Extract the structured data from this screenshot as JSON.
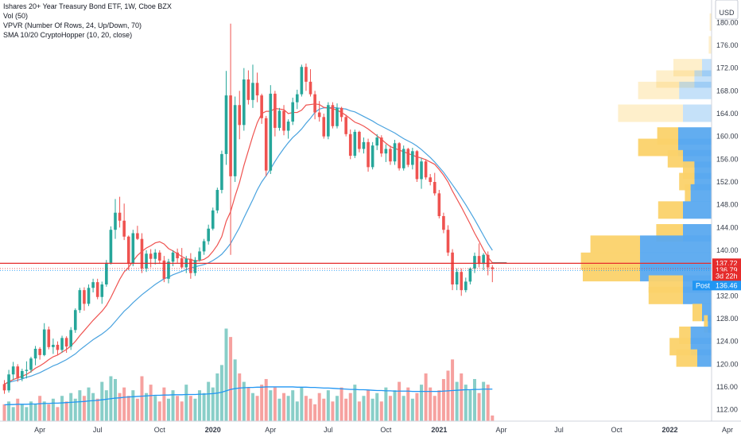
{
  "legend": {
    "title": "Ishares 20+ Year Treasury Bond ETF, 1W, Cboe BZX",
    "vol": "Vol (50)",
    "vpvr": "VPVR (Number Of Rows, 24, Up/Down, 70)",
    "sma": "SMA 10/20 CryptoHopper (10, 20, close)"
  },
  "currency_label": "USD",
  "colors": {
    "up": "#26a69a",
    "down": "#ef5350",
    "sma10": "#ef5350",
    "sma20": "#4aa3df",
    "volma": "#2196f3",
    "vpvr_up": "#5aa9ef",
    "vpvr_down": "#fbd26a",
    "price_line": "#e52b2b",
    "post": "#2196f3"
  },
  "chart_data": {
    "type": "candlestick",
    "ylim": [
      110,
      182
    ],
    "y_ticks": [
      112,
      116,
      120,
      124,
      128,
      132,
      136,
      140,
      144,
      148,
      152,
      156,
      160,
      164,
      168,
      172,
      176,
      180
    ],
    "x_ticks": [
      "Apr",
      "Jul",
      "Oct",
      "2020",
      "Apr",
      "Jul",
      "Oct",
      "2021",
      "Apr",
      "Jul",
      "Oct",
      "2022",
      "Apr"
    ],
    "x_tick_bold": [
      false,
      false,
      false,
      true,
      false,
      false,
      false,
      true,
      false,
      false,
      false,
      true,
      false
    ],
    "x_tick_week": [
      8,
      21,
      35,
      47,
      60,
      73,
      86,
      98,
      112,
      125,
      138,
      150,
      163
    ],
    "candles": [
      [
        116.5,
        117.2,
        114.8,
        115.4
      ],
      [
        115.4,
        119.0,
        115.0,
        118.2
      ],
      [
        118.2,
        120.4,
        117.2,
        119.6
      ],
      [
        119.6,
        120.0,
        116.9,
        117.5
      ],
      [
        117.5,
        119.2,
        117.0,
        118.8
      ],
      [
        118.8,
        120.5,
        117.5,
        119.0
      ],
      [
        119.0,
        121.3,
        118.5,
        121.0
      ],
      [
        121.0,
        123.2,
        119.8,
        122.7
      ],
      [
        122.7,
        123.0,
        120.8,
        121.6
      ],
      [
        121.6,
        127.2,
        121.4,
        126.1
      ],
      [
        126.1,
        126.6,
        122.6,
        123.0
      ],
      [
        123.0,
        124.5,
        121.8,
        123.4
      ],
      [
        123.4,
        124.0,
        121.6,
        122.5
      ],
      [
        122.5,
        125.0,
        122.0,
        124.6
      ],
      [
        124.6,
        124.9,
        122.0,
        123.1
      ],
      [
        123.1,
        126.5,
        122.5,
        126.0
      ],
      [
        126.0,
        129.8,
        125.5,
        129.5
      ],
      [
        129.5,
        133.4,
        129.0,
        133.0
      ],
      [
        133.0,
        133.5,
        129.4,
        130.6
      ],
      [
        130.6,
        134.0,
        130.2,
        133.4
      ],
      [
        133.4,
        135.0,
        132.6,
        134.4
      ],
      [
        134.4,
        135.0,
        131.4,
        131.8
      ],
      [
        131.8,
        134.5,
        130.6,
        134.0
      ],
      [
        134.0,
        138.3,
        133.6,
        137.8
      ],
      [
        137.8,
        144.2,
        137.5,
        143.6
      ],
      [
        143.6,
        149.0,
        142.0,
        146.6
      ],
      [
        146.6,
        149.4,
        144.0,
        145.2
      ],
      [
        145.2,
        148.2,
        141.8,
        142.4
      ],
      [
        142.4,
        142.6,
        136.5,
        137.6
      ],
      [
        137.6,
        143.6,
        137.2,
        143.0
      ],
      [
        143.0,
        144.3,
        141.8,
        142.0
      ],
      [
        142.0,
        143.0,
        136.0,
        136.8
      ],
      [
        136.8,
        140.0,
        136.2,
        139.4
      ],
      [
        139.4,
        140.2,
        137.0,
        138.5
      ],
      [
        138.5,
        140.2,
        137.5,
        139.6
      ],
      [
        139.6,
        140.0,
        137.6,
        138.2
      ],
      [
        138.2,
        139.0,
        134.4,
        135.0
      ],
      [
        135.0,
        138.5,
        134.2,
        138.0
      ],
      [
        138.0,
        140.0,
        137.2,
        139.6
      ],
      [
        139.6,
        140.3,
        137.8,
        138.6
      ],
      [
        138.6,
        140.4,
        136.8,
        137.0
      ],
      [
        137.0,
        139.0,
        136.0,
        138.5
      ],
      [
        138.5,
        139.5,
        135.0,
        136.0
      ],
      [
        136.0,
        138.8,
        135.5,
        138.3
      ],
      [
        138.3,
        140.5,
        138.0,
        139.8
      ],
      [
        139.8,
        142.0,
        139.2,
        141.6
      ],
      [
        141.6,
        144.5,
        141.0,
        143.8
      ],
      [
        143.8,
        147.5,
        143.5,
        147.0
      ],
      [
        147.0,
        151.0,
        146.5,
        150.6
      ],
      [
        150.6,
        157.5,
        150.0,
        156.9
      ],
      [
        156.9,
        171.5,
        155.0,
        167.2
      ],
      [
        167.2,
        179.8,
        139.2,
        153.0
      ],
      [
        153.0,
        167.0,
        152.0,
        165.5
      ],
      [
        165.5,
        168.0,
        159.5,
        162.0
      ],
      [
        162.0,
        172.0,
        161.0,
        170.0
      ],
      [
        170.0,
        171.6,
        165.6,
        166.4
      ],
      [
        166.4,
        172.6,
        165.0,
        169.4
      ],
      [
        169.4,
        171.2,
        166.0,
        167.2
      ],
      [
        167.2,
        167.5,
        162.2,
        163.2
      ],
      [
        163.2,
        163.6,
        153.0,
        154.0
      ],
      [
        154.0,
        169.0,
        153.4,
        167.5
      ],
      [
        167.5,
        168.0,
        160.0,
        161.5
      ],
      [
        161.5,
        165.0,
        161.0,
        164.5
      ],
      [
        164.5,
        165.5,
        160.2,
        161.0
      ],
      [
        161.0,
        163.0,
        159.6,
        162.6
      ],
      [
        162.6,
        166.8,
        162.0,
        166.0
      ],
      [
        166.0,
        168.2,
        164.8,
        167.4
      ],
      [
        167.4,
        172.6,
        167.0,
        172.2
      ],
      [
        172.2,
        172.8,
        168.0,
        169.6
      ],
      [
        169.6,
        171.8,
        167.0,
        167.4
      ],
      [
        167.4,
        168.0,
        163.0,
        164.2
      ],
      [
        164.2,
        166.2,
        162.6,
        163.4
      ],
      [
        163.4,
        164.0,
        159.6,
        160.0
      ],
      [
        160.0,
        166.0,
        159.5,
        165.5
      ],
      [
        165.5,
        166.0,
        161.4,
        161.8
      ],
      [
        161.8,
        165.8,
        161.4,
        165.0
      ],
      [
        165.0,
        165.2,
        162.6,
        163.4
      ],
      [
        163.4,
        163.8,
        160.0,
        160.4
      ],
      [
        160.4,
        161.2,
        156.0,
        156.6
      ],
      [
        156.6,
        161.2,
        156.2,
        160.8
      ],
      [
        160.8,
        161.0,
        157.2,
        157.8
      ],
      [
        157.8,
        159.8,
        157.0,
        159.0
      ],
      [
        159.0,
        159.6,
        153.8,
        154.6
      ],
      [
        154.6,
        159.0,
        154.2,
        158.4
      ],
      [
        158.4,
        160.4,
        157.6,
        159.8
      ],
      [
        159.8,
        160.2,
        156.4,
        157.0
      ],
      [
        157.0,
        158.6,
        155.5,
        157.8
      ],
      [
        157.8,
        158.4,
        155.0,
        155.6
      ],
      [
        155.6,
        159.4,
        155.0,
        158.8
      ],
      [
        158.8,
        159.0,
        154.0,
        154.4
      ],
      [
        154.4,
        158.4,
        154.0,
        157.8
      ],
      [
        157.8,
        158.0,
        154.6,
        155.0
      ],
      [
        155.0,
        158.0,
        154.2,
        157.4
      ],
      [
        157.4,
        157.6,
        152.0,
        152.5
      ],
      [
        152.5,
        156.2,
        150.8,
        155.6
      ],
      [
        155.6,
        156.0,
        152.4,
        152.8
      ],
      [
        152.8,
        153.4,
        151.4,
        152.0
      ],
      [
        152.0,
        153.6,
        149.6,
        150.0
      ],
      [
        150.0,
        150.6,
        145.6,
        146.0
      ],
      [
        146.0,
        146.6,
        143.0,
        143.6
      ],
      [
        143.6,
        144.4,
        139.0,
        139.6
      ],
      [
        139.6,
        140.2,
        133.0,
        134.0
      ],
      [
        134.0,
        136.8,
        133.0,
        136.2
      ],
      [
        136.2,
        136.8,
        132.0,
        133.0
      ],
      [
        133.0,
        135.2,
        132.6,
        134.5
      ],
      [
        134.5,
        137.0,
        134.0,
        136.8
      ],
      [
        136.8,
        139.6,
        136.0,
        139.0
      ],
      [
        139.0,
        141.2,
        137.0,
        137.6
      ],
      [
        137.6,
        139.5,
        136.5,
        139.2
      ],
      [
        139.2,
        139.8,
        135.6,
        137.0
      ],
      [
        137.0,
        137.4,
        134.4,
        136.7
      ]
    ],
    "sma10": [
      116.5,
      116.9,
      117.3,
      117.6,
      117.9,
      118.2,
      118.7,
      119.3,
      119.7,
      120.2,
      120.8,
      121.3,
      121.6,
      122.1,
      122.6,
      123.2,
      124.0,
      125.0,
      125.9,
      126.8,
      127.7,
      128.5,
      129.3,
      130.3,
      131.7,
      133.3,
      134.9,
      136.2,
      137.0,
      138.1,
      139.1,
      139.8,
      140.4,
      140.8,
      141.3,
      141.5,
      141.1,
      140.3,
      139.9,
      139.4,
      138.9,
      138.5,
      138.4,
      138.1,
      138.2,
      138.4,
      138.9,
      139.8,
      140.9,
      142.4,
      145.1,
      146.8,
      149.5,
      151.9,
      154.9,
      157.5,
      160.1,
      162.4,
      164.0,
      164.4,
      164.4,
      164.9,
      164.8,
      164.7,
      164.0,
      164.2,
      164.2,
      164.6,
      165.5,
      165.6,
      165.7,
      165.6,
      165.1,
      165.0,
      164.9,
      164.6,
      164.2,
      163.7,
      163.1,
      162.5,
      162.2,
      161.8,
      161.3,
      160.7,
      160.1,
      159.5,
      158.8,
      158.2,
      157.9,
      157.6,
      157.3,
      157.0,
      156.7,
      156.4,
      156.2,
      155.9,
      155.5,
      155.1,
      154.2,
      153.2,
      152.0,
      150.4,
      149.0,
      147.6,
      146.1,
      144.6,
      143.0,
      141.6,
      140.1,
      138.8,
      137.8
    ],
    "sma20": [
      116.5,
      116.8,
      117.0,
      117.2,
      117.4,
      117.7,
      117.9,
      118.2,
      118.5,
      118.9,
      119.3,
      119.7,
      120.0,
      120.4,
      120.8,
      121.3,
      121.8,
      122.5,
      123.1,
      123.7,
      124.3,
      124.8,
      125.3,
      125.9,
      126.6,
      127.5,
      128.4,
      129.3,
      130.0,
      130.8,
      131.5,
      132.2,
      132.8,
      133.4,
      134.0,
      134.5,
      135.0,
      135.3,
      135.7,
      136.0,
      136.3,
      136.6,
      136.9,
      137.1,
      137.3,
      137.5,
      137.8,
      138.2,
      138.7,
      139.3,
      140.2,
      141.2,
      142.6,
      144.0,
      145.7,
      147.3,
      148.9,
      150.6,
      152.0,
      153.1,
      154.3,
      155.6,
      156.8,
      157.9,
      158.9,
      159.8,
      160.5,
      161.3,
      162.3,
      163.2,
      164.2,
      164.8,
      165.0,
      165.0,
      165.1,
      165.0,
      164.9,
      164.8,
      164.5,
      164.3,
      163.9,
      163.5,
      163.1,
      162.7,
      162.2,
      161.8,
      161.4,
      161.0,
      160.6,
      160.1,
      159.6,
      159.2,
      158.8,
      158.3,
      157.7,
      157.0,
      156.3,
      155.5,
      154.6,
      153.7,
      152.6,
      151.5,
      150.4,
      149.2,
      148.0,
      146.7,
      145.4,
      144.0,
      142.6,
      141.2,
      140.0
    ],
    "volumes": [
      6,
      7,
      5,
      8,
      6,
      5,
      7,
      6,
      9,
      7,
      6,
      8,
      5,
      9,
      7,
      10,
      8,
      11,
      9,
      12,
      10,
      8,
      14,
      11,
      16,
      15,
      10,
      12,
      9,
      11,
      8,
      16,
      10,
      13,
      9,
      7,
      12,
      8,
      11,
      9,
      7,
      13,
      9,
      8,
      11,
      10,
      14,
      12,
      17,
      20,
      33,
      30,
      22,
      17,
      14,
      12,
      10,
      9,
      13,
      15,
      11,
      12,
      8,
      10,
      9,
      11,
      7,
      12,
      9,
      8,
      6,
      10,
      8,
      11,
      7,
      9,
      12,
      8,
      10,
      13,
      7,
      9,
      11,
      8,
      10,
      7,
      12,
      9,
      11,
      14,
      9,
      12,
      8,
      10,
      13,
      17,
      12,
      9,
      11,
      15,
      18,
      22,
      14,
      17,
      13,
      11,
      15,
      10,
      14,
      13,
      2
    ],
    "vol_ma": [
      5.8,
      5.9,
      5.9,
      6.0,
      6.0,
      6.0,
      6.1,
      6.1,
      6.2,
      6.3,
      6.3,
      6.4,
      6.4,
      6.5,
      6.6,
      6.7,
      6.8,
      6.9,
      7.0,
      7.2,
      7.3,
      7.4,
      7.6,
      7.8,
      8.0,
      8.2,
      8.3,
      8.5,
      8.6,
      8.7,
      8.8,
      8.9,
      9.0,
      9.1,
      9.2,
      9.2,
      9.3,
      9.3,
      9.4,
      9.4,
      9.4,
      9.5,
      9.5,
      9.5,
      9.6,
      9.6,
      9.7,
      9.8,
      10.0,
      10.3,
      10.8,
      11.3,
      11.6,
      11.8,
      11.9,
      12.0,
      12.0,
      12.1,
      12.1,
      12.2,
      12.2,
      12.2,
      12.2,
      12.2,
      12.2,
      12.2,
      12.1,
      12.1,
      12.1,
      12.0,
      12.0,
      11.9,
      11.8,
      11.8,
      11.7,
      11.6,
      11.5,
      11.4,
      11.3,
      11.3,
      11.2,
      11.2,
      11.1,
      11.0,
      10.9,
      10.9,
      10.8,
      10.8,
      10.7,
      10.7,
      10.7,
      10.7,
      10.6,
      10.6,
      10.6,
      10.6,
      10.6,
      10.6,
      10.6,
      10.7,
      10.8,
      10.9,
      11.0,
      11.1,
      11.2,
      11.2,
      11.3,
      11.3,
      11.4,
      11.4,
      11.4
    ],
    "vpvr": [
      {
        "price": 180,
        "up": 0,
        "down": 2
      },
      {
        "price": 176,
        "up": 0,
        "down": 3
      },
      {
        "price": 172,
        "up": 10,
        "down": 30
      },
      {
        "price": 170,
        "up": 18,
        "down": 40
      },
      {
        "price": 168,
        "up": 34,
        "down": 43
      },
      {
        "price": 164,
        "up": 30,
        "down": 68
      },
      {
        "price": 160,
        "up": 35,
        "down": 22
      },
      {
        "price": 158,
        "up": 35,
        "down": 42
      },
      {
        "price": 156,
        "up": 30,
        "down": 16
      },
      {
        "price": 154,
        "up": 18,
        "down": 12
      },
      {
        "price": 152,
        "up": 18,
        "down": 16
      },
      {
        "price": 150,
        "up": 22,
        "down": 6
      },
      {
        "price": 147,
        "up": 30,
        "down": 26
      },
      {
        "price": 143,
        "up": 30,
        "down": 28
      },
      {
        "price": 141,
        "up": 75,
        "down": 52
      },
      {
        "price": 138,
        "up": 75,
        "down": 62
      },
      {
        "price": 136,
        "up": 75,
        "down": 60
      },
      {
        "price": 134,
        "up": 30,
        "down": 36
      },
      {
        "price": 132,
        "up": 30,
        "down": 36
      },
      {
        "price": 129,
        "up": 10,
        "down": 10
      },
      {
        "price": 127,
        "up": 4,
        "down": 4
      },
      {
        "price": 125,
        "up": 22,
        "down": 12
      },
      {
        "price": 123,
        "up": 22,
        "down": 22
      },
      {
        "price": 121,
        "up": 15,
        "down": 22
      }
    ],
    "price_lines": [
      {
        "price": 137.72,
        "label": "137.72",
        "color": "#e52b2b",
        "style": "solid"
      },
      {
        "price": 136.79,
        "label": "136.79",
        "color": "#e52b2b",
        "style": "dotted"
      },
      {
        "price": 136.46,
        "label": "136.46",
        "color": "#2196f3",
        "style": "dotted"
      }
    ],
    "countdown": "3d 22h",
    "post_label": "Post"
  }
}
